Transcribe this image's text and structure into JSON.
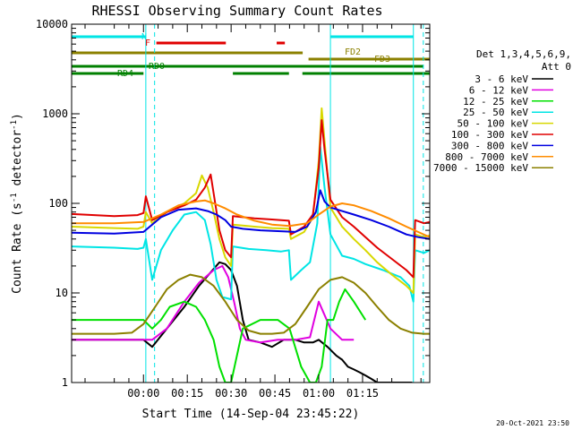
{
  "chart_data": {
    "type": "line",
    "title": "RHESSI Observing Summary Count Rates",
    "xlabel": "Start Time (14-Sep-04 23:45:22)",
    "ylabel_main": "Count Rate (s",
    "ylabel_sup1": "-1",
    "ylabel_mid": " detector",
    "ylabel_sup2": "-1",
    "ylabel_end": ")",
    "yscale": "log",
    "ylim": [
      1,
      10000
    ],
    "xlim_minutes": [
      -24.6,
      98.0
    ],
    "x_ticks": [
      {
        "label": "00:00",
        "min": 0
      },
      {
        "label": "00:15",
        "min": 15
      },
      {
        "label": "00:30",
        "min": 30
      },
      {
        "label": "00:45",
        "min": 45
      },
      {
        "label": "01:00",
        "min": 60
      },
      {
        "label": "01:15",
        "min": 75
      }
    ],
    "y_ticks": [
      {
        "label": "1",
        "value": 1
      },
      {
        "label": "10",
        "value": 10
      },
      {
        "label": "100",
        "value": 100
      },
      {
        "label": "1000",
        "value": 1000
      },
      {
        "label": "10000",
        "value": 10000
      }
    ],
    "legend_header": [
      "Det 1,3,4,5,6,9,",
      "Att 0"
    ],
    "timestamp": "20-Oct-2021 23:50",
    "night_intervals_min": [
      [
        -24.6,
        0.8
      ],
      [
        64.0,
        92.4
      ]
    ],
    "saa_markers_min": [
      3.8,
      95.8
    ],
    "flag_labels": [
      {
        "text": "N",
        "color": "#00e5e5"
      },
      {
        "text": "F",
        "color": "#e00000"
      },
      {
        "text": "FD2",
        "color": "#8b8000"
      },
      {
        "text": "FD3",
        "color": "#8b8000"
      },
      {
        "text": "RD0",
        "color": "#008000"
      },
      {
        "text": "RD4",
        "color": "#008000"
      }
    ],
    "flags": {
      "night": [
        [
          -24.6,
          0.8
        ],
        [
          64.0,
          92.4
        ]
      ],
      "flare": [
        [
          4.4,
          28.2
        ],
        [
          45.6,
          48.4
        ]
      ],
      "fd2": [
        [
          -24.6,
          54.5
        ]
      ],
      "fd3": [
        [
          56.5,
          98.0
        ]
      ],
      "rd0": [
        [
          -24.6,
          95.8
        ]
      ],
      "rd4": [
        [
          -24.6,
          0.0
        ],
        [
          30.6,
          49.8
        ],
        [
          54.4,
          98.0
        ]
      ]
    },
    "series": [
      {
        "name": "3 - 6 keV",
        "color": "#000000",
        "x": [
          -24.6,
          -5,
          0,
          3,
          8,
          14,
          19,
          23,
          26,
          28,
          30,
          32,
          34,
          36,
          40,
          44,
          48,
          52,
          55,
          58,
          60,
          63,
          66,
          68,
          70,
          72,
          74,
          76,
          78,
          80,
          82,
          85,
          88,
          90,
          92
        ],
        "y": [
          3.0,
          3.0,
          3.0,
          2.5,
          4.0,
          7.0,
          12,
          17,
          22,
          21,
          18,
          12,
          5.0,
          3.0,
          2.8,
          2.5,
          3.0,
          3.0,
          2.8,
          2.8,
          3.0,
          2.5,
          2.0,
          1.8,
          1.5,
          1.4,
          1.3,
          1.2,
          1.1,
          1.0,
          1.0,
          1.0,
          1.0,
          1.0,
          1.0
        ]
      },
      {
        "name": "6 - 12 keV",
        "color": "#e000e0",
        "x": [
          -24.6,
          0,
          3,
          8,
          14,
          19,
          24,
          27,
          29,
          31,
          33,
          35,
          40,
          46,
          52,
          57,
          60,
          64,
          68,
          72
        ],
        "y": [
          3.0,
          3.0,
          3.0,
          4.0,
          8.0,
          13,
          18,
          20,
          15,
          8.0,
          4.0,
          3.0,
          2.8,
          3.0,
          3.0,
          3.2,
          8.0,
          4.0,
          3.0,
          3.0
        ]
      },
      {
        "name": "12 - 25 keV",
        "color": "#00e000",
        "x": [
          -24.6,
          0,
          3,
          6,
          9,
          14,
          18,
          21,
          24,
          26,
          28,
          30,
          34,
          40,
          46,
          50,
          54,
          57,
          59,
          61,
          63,
          65,
          67,
          69,
          72,
          76
        ],
        "y": [
          5.0,
          5.0,
          4.0,
          5.0,
          7.0,
          8.0,
          7.0,
          5.0,
          3.0,
          1.5,
          1.0,
          1.0,
          4.0,
          5.0,
          5.0,
          4.0,
          1.5,
          1.0,
          1.0,
          1.5,
          5.0,
          5.0,
          8.0,
          11,
          8.0,
          5.0
        ]
      },
      {
        "name": "25 - 50 keV",
        "color": "#00e5e5",
        "x": [
          -24.6,
          -10,
          -2,
          0,
          0.8,
          3,
          6,
          10,
          14,
          18,
          21,
          23,
          25,
          27,
          30,
          30.6,
          36,
          42,
          47,
          49.8,
          50.5,
          54,
          57,
          59.5,
          60.5,
          62,
          64,
          68,
          72,
          76,
          82,
          88,
          91,
          92.4,
          93,
          96,
          98
        ],
        "y": [
          33,
          32,
          31,
          32,
          40,
          14,
          30,
          50,
          75,
          80,
          65,
          35,
          14,
          9.0,
          8.5,
          33,
          31,
          30,
          29,
          30,
          14,
          18,
          22,
          60,
          430,
          150,
          45,
          26,
          24,
          21,
          18,
          15,
          12,
          8.0,
          30,
          28,
          30
        ]
      },
      {
        "name": "50 - 100 keV",
        "color": "#d8d800",
        "x": [
          -24.6,
          -10,
          -2,
          0,
          0.8,
          3,
          8,
          14,
          18,
          20,
          22,
          24,
          26,
          28,
          30,
          30.6,
          38,
          44,
          49.8,
          50.5,
          55,
          58,
          60,
          61,
          62,
          64,
          68,
          72,
          76,
          80,
          85,
          90,
          92.4,
          93,
          96,
          98
        ],
        "y": [
          55,
          53,
          52,
          55,
          80,
          60,
          80,
          100,
          130,
          205,
          150,
          80,
          40,
          25,
          20,
          58,
          55,
          53,
          52,
          40,
          48,
          70,
          300,
          1150,
          500,
          90,
          55,
          40,
          30,
          22,
          16,
          12,
          10,
          45,
          42,
          44
        ]
      },
      {
        "name": "100 - 300 keV",
        "color": "#e00000",
        "x": [
          -24.6,
          -10,
          -2,
          0,
          0.8,
          3,
          8,
          14,
          18,
          21,
          23,
          24,
          26,
          28,
          30,
          30.6,
          38,
          44,
          49.8,
          50.5,
          55,
          58,
          60,
          61,
          62,
          64,
          68,
          72,
          76,
          80,
          85,
          90,
          92.4,
          93,
          96,
          98
        ],
        "y": [
          76,
          72,
          74,
          78,
          120,
          65,
          80,
          95,
          110,
          150,
          210,
          130,
          50,
          30,
          25,
          72,
          68,
          66,
          64,
          45,
          55,
          75,
          250,
          850,
          400,
          110,
          70,
          55,
          42,
          32,
          24,
          18,
          15,
          65,
          60,
          62
        ]
      },
      {
        "name": "300 - 800 keV",
        "color": "#0000e0",
        "x": [
          -24.6,
          -10,
          0,
          6,
          12,
          18,
          22,
          25,
          28,
          30,
          34,
          40,
          46,
          52,
          56,
          59,
          60.5,
          62,
          64,
          68,
          72,
          78,
          84,
          90,
          94,
          98
        ],
        "y": [
          47,
          46,
          48,
          70,
          85,
          88,
          82,
          75,
          65,
          55,
          52,
          50,
          49,
          48,
          55,
          80,
          140,
          105,
          90,
          82,
          75,
          65,
          55,
          45,
          42,
          40
        ]
      },
      {
        "name": "800 - 7000 keV",
        "color": "#ff8c00",
        "x": [
          -24.6,
          -10,
          0,
          6,
          12,
          18,
          21,
          24,
          28,
          32,
          38,
          44,
          50,
          56,
          60,
          64,
          68,
          72,
          78,
          84,
          90,
          94,
          98
        ],
        "y": [
          60,
          60,
          62,
          75,
          95,
          105,
          108,
          100,
          88,
          75,
          64,
          58,
          56,
          60,
          75,
          92,
          100,
          95,
          82,
          68,
          55,
          48,
          42
        ]
      },
      {
        "name": "7000 - 15000 keV",
        "color": "#8b8000",
        "x": [
          -24.6,
          -10,
          -4,
          0,
          4,
          8,
          12,
          16,
          20,
          24,
          28,
          32,
          36,
          40,
          44,
          48,
          52,
          56,
          60,
          64,
          68,
          72,
          76,
          80,
          84,
          88,
          92,
          96,
          98
        ],
        "y": [
          3.5,
          3.5,
          3.6,
          4.5,
          7.0,
          11,
          14,
          16,
          15,
          12,
          8.0,
          5.0,
          3.8,
          3.5,
          3.5,
          3.6,
          4.5,
          7.0,
          11,
          14,
          15,
          13,
          10,
          7.0,
          5.0,
          4.0,
          3.6,
          3.5,
          3.5
        ]
      }
    ]
  }
}
